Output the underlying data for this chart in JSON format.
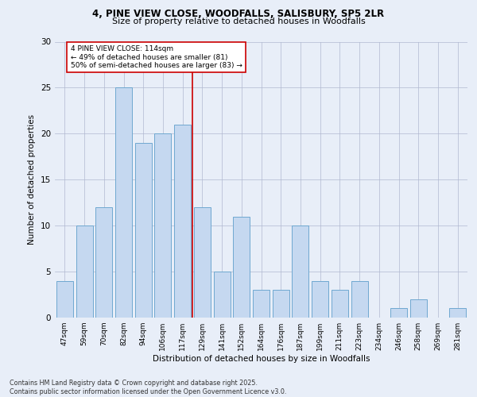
{
  "title_line1": "4, PINE VIEW CLOSE, WOODFALLS, SALISBURY, SP5 2LR",
  "title_line2": "Size of property relative to detached houses in Woodfalls",
  "xlabel": "Distribution of detached houses by size in Woodfalls",
  "ylabel": "Number of detached properties",
  "categories": [
    "47sqm",
    "59sqm",
    "70sqm",
    "82sqm",
    "94sqm",
    "106sqm",
    "117sqm",
    "129sqm",
    "141sqm",
    "152sqm",
    "164sqm",
    "176sqm",
    "187sqm",
    "199sqm",
    "211sqm",
    "223sqm",
    "234sqm",
    "246sqm",
    "258sqm",
    "269sqm",
    "281sqm"
  ],
  "values": [
    4,
    10,
    12,
    25,
    19,
    20,
    21,
    12,
    5,
    11,
    3,
    3,
    10,
    4,
    3,
    4,
    0,
    1,
    2,
    0,
    1
  ],
  "bar_color": "#C5D8F0",
  "bar_edge_color": "#6FA8D0",
  "vline_x": 6.5,
  "vline_color": "#CC0000",
  "annotation_text": "4 PINE VIEW CLOSE: 114sqm\n← 49% of detached houses are smaller (81)\n50% of semi-detached houses are larger (83) →",
  "annotation_box_color": "#ffffff",
  "annotation_box_edge": "#CC0000",
  "ylim": [
    0,
    30
  ],
  "yticks": [
    0,
    5,
    10,
    15,
    20,
    25,
    30
  ],
  "footer_text": "Contains HM Land Registry data © Crown copyright and database right 2025.\nContains public sector information licensed under the Open Government Licence v3.0.",
  "bg_color": "#E8EEF8",
  "plot_bg_color": "#E8EEF8"
}
